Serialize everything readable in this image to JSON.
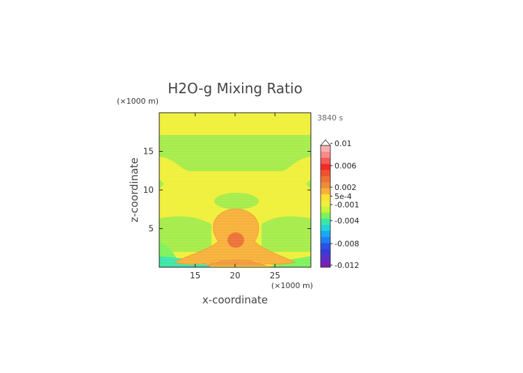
{
  "chart_data": {
    "type": "heatmap",
    "title": "H2O-g Mixing Ratio",
    "xlabel": "x-coordinate",
    "ylabel": "z-coordinate",
    "x_unit": "(×1000 m)",
    "y_unit": "(×1000 m)",
    "time_label": "3840 s",
    "xlim": [
      10.5,
      29.5
    ],
    "ylim": [
      0,
      20
    ],
    "x_ticks": [
      15,
      20,
      25
    ],
    "y_ticks": [
      5,
      10,
      15
    ],
    "colorbar": {
      "labels": [
        "0.01",
        "0.006",
        "0.002",
        "5e-4",
        "-0.001",
        "-0.004",
        "-0.008",
        "-0.012"
      ],
      "colors": [
        "#7a1fb5",
        "#5a2fc8",
        "#3a3ad6",
        "#2a52e6",
        "#1f7ff0",
        "#1aa8f6",
        "#22d3d6",
        "#3ce6a8",
        "#7ef25c",
        "#c7f53a",
        "#f0f03a",
        "#ffe033",
        "#f7b13a",
        "#ef8a3a",
        "#ec7236",
        "#f0522f",
        "#f22b2b",
        "#f55a5a",
        "#f88a8a",
        "#fbb0b0"
      ],
      "extend_top": true
    },
    "field_regions": [
      {
        "name": "background",
        "level": "slightly positive",
        "color": "#f0f03a"
      },
      {
        "name": "upper moist band",
        "level": "slightly negative",
        "color": "#a6ec4a"
      },
      {
        "name": "central plume",
        "level": "0.002",
        "color": "#f7b13a"
      },
      {
        "name": "plume core",
        "level": "0.004",
        "color": "#ec7236"
      },
      {
        "name": "surface layer",
        "level": "-0.002",
        "color": "#3ce6a8"
      }
    ]
  }
}
